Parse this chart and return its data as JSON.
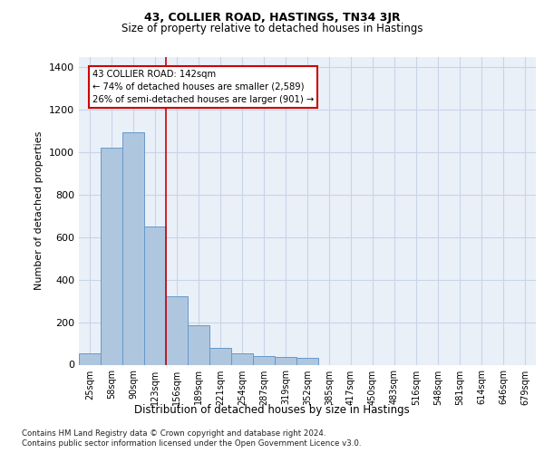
{
  "title1": "43, COLLIER ROAD, HASTINGS, TN34 3JR",
  "title2": "Size of property relative to detached houses in Hastings",
  "xlabel": "Distribution of detached houses by size in Hastings",
  "ylabel": "Number of detached properties",
  "categories": [
    "25sqm",
    "58sqm",
    "90sqm",
    "123sqm",
    "156sqm",
    "189sqm",
    "221sqm",
    "254sqm",
    "287sqm",
    "319sqm",
    "352sqm",
    "385sqm",
    "417sqm",
    "450sqm",
    "483sqm",
    "516sqm",
    "548sqm",
    "581sqm",
    "614sqm",
    "646sqm",
    "679sqm"
  ],
  "values": [
    55,
    1020,
    1095,
    650,
    320,
    185,
    80,
    55,
    40,
    35,
    30,
    0,
    0,
    0,
    0,
    0,
    0,
    0,
    0,
    0,
    0
  ],
  "bar_color": "#aec6de",
  "bar_edge_color": "#6699cc",
  "grid_color": "#c8d4e8",
  "bg_color": "#eaf0f8",
  "annotation_box_color": "#cc0000",
  "property_line_x": 3.5,
  "annotation_title": "43 COLLIER ROAD: 142sqm",
  "annotation_line1": "← 74% of detached houses are smaller (2,589)",
  "annotation_line2": "26% of semi-detached houses are larger (901) →",
  "footer1": "Contains HM Land Registry data © Crown copyright and database right 2024.",
  "footer2": "Contains public sector information licensed under the Open Government Licence v3.0.",
  "ylim": [
    0,
    1450
  ],
  "yticks": [
    0,
    200,
    400,
    600,
    800,
    1000,
    1200,
    1400
  ]
}
